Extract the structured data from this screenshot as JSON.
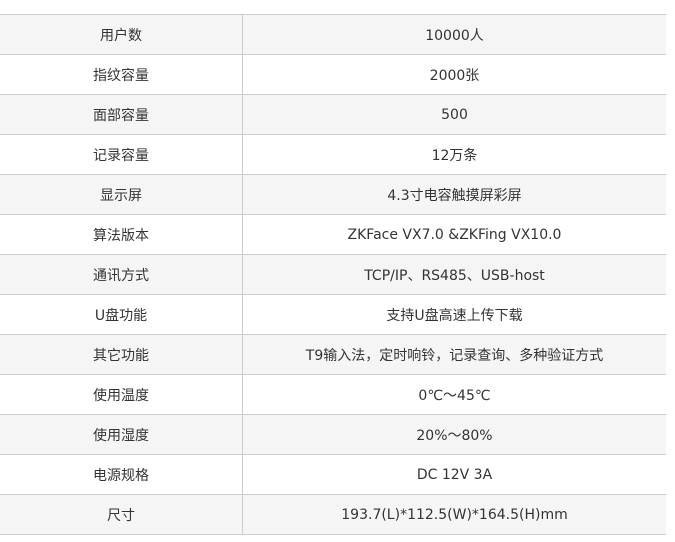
{
  "specs": [
    {
      "label": "用户数",
      "value": "10000人"
    },
    {
      "label": "指纹容量",
      "value": "2000张"
    },
    {
      "label": "面部容量",
      "value": "500"
    },
    {
      "label": "记录容量",
      "value": "12万条"
    },
    {
      "label": "显示屏",
      "value": "4.3寸电容触摸屏彩屏"
    },
    {
      "label": "算法版本",
      "value": "ZKFace VX7.0 &ZKFing VX10.0"
    },
    {
      "label": "通讯方式",
      "value": "TCP/IP、RS485、USB-host"
    },
    {
      "label": "U盘功能",
      "value": "支持U盘高速上传下载"
    },
    {
      "label": "其它功能",
      "value": "T9输入法，定时响铃，记录查询、多种验证方式"
    },
    {
      "label": "使用温度",
      "value": "0℃～45℃"
    },
    {
      "label": "使用湿度",
      "value": "20%～80%"
    },
    {
      "label": "电源规格",
      "value": "DC 12V 3A"
    },
    {
      "label": "尺寸",
      "value": "193.7(L)*112.5(W)*164.5(H)mm"
    }
  ]
}
